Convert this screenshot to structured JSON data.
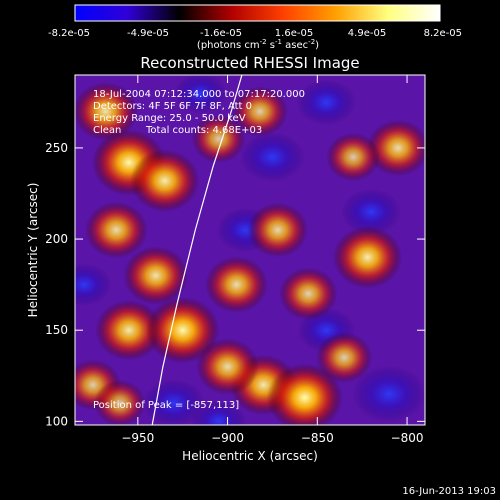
{
  "colorbar": {
    "tick_labels": [
      "-8.2e-05",
      "-4.9e-05",
      "-1.6e-05",
      "1.6e-05",
      "4.9e-05",
      "8.2e-05"
    ],
    "units_main": "(photons cm",
    "units_exp1": "-2",
    "units_mid": " s",
    "units_exp2": "-1",
    "units_mid2": " asec",
    "units_exp3": "-2",
    "units_close": ")",
    "colors": [
      "#0000ff",
      "#3000d8",
      "#000000",
      "#b00000",
      "#ff4000",
      "#ffa000",
      "#ffff80",
      "#ffffff"
    ]
  },
  "chart_data": {
    "type": "heatmap",
    "title": "Reconstructed RHESSI Image",
    "xlabel": "Heliocentric X (arcsec)",
    "ylabel": "Heliocentric Y (arcsec)",
    "xlim": [
      -985,
      -790
    ],
    "ylim": [
      98,
      290
    ],
    "x_ticks": [
      -950,
      -900,
      -850,
      -800
    ],
    "y_ticks": [
      100,
      150,
      200,
      250
    ],
    "value_range": [
      -8.2e-05,
      8.2e-05
    ],
    "peak": [
      -857,
      113
    ],
    "limb_curve": [
      [
        -942,
        98
      ],
      [
        -936,
        130
      ],
      [
        -928,
        165
      ],
      [
        -918,
        205
      ],
      [
        -908,
        240
      ],
      [
        -898,
        270
      ],
      [
        -892,
        290
      ]
    ],
    "bright_sources": [
      {
        "x": -968,
        "y": 270,
        "level": 0.75
      },
      {
        "x": -955,
        "y": 242,
        "level": 0.95
      },
      {
        "x": -935,
        "y": 232,
        "level": 0.85
      },
      {
        "x": -962,
        "y": 205,
        "level": 0.7
      },
      {
        "x": -940,
        "y": 180,
        "level": 0.75
      },
      {
        "x": -955,
        "y": 150,
        "level": 0.8
      },
      {
        "x": -925,
        "y": 150,
        "level": 0.95
      },
      {
        "x": -895,
        "y": 175,
        "level": 0.7
      },
      {
        "x": -872,
        "y": 205,
        "level": 0.65
      },
      {
        "x": -855,
        "y": 170,
        "level": 0.6
      },
      {
        "x": -822,
        "y": 190,
        "level": 0.85
      },
      {
        "x": -805,
        "y": 250,
        "level": 0.7
      },
      {
        "x": -830,
        "y": 245,
        "level": 0.5
      },
      {
        "x": -880,
        "y": 120,
        "level": 0.8
      },
      {
        "x": -857,
        "y": 113,
        "level": 1.0
      },
      {
        "x": -835,
        "y": 135,
        "level": 0.55
      },
      {
        "x": -900,
        "y": 130,
        "level": 0.7
      },
      {
        "x": -975,
        "y": 120,
        "level": 0.55
      },
      {
        "x": -960,
        "y": 110,
        "level": 0.45
      },
      {
        "x": -905,
        "y": 255,
        "level": 0.5
      },
      {
        "x": -882,
        "y": 270,
        "level": 0.55
      }
    ],
    "dark_regions": [
      {
        "x": -875,
        "y": 245,
        "level": 0.6
      },
      {
        "x": -845,
        "y": 275,
        "level": 0.5
      },
      {
        "x": -810,
        "y": 115,
        "level": 0.8
      },
      {
        "x": -820,
        "y": 215,
        "level": 0.5
      },
      {
        "x": -890,
        "y": 205,
        "level": 0.45
      },
      {
        "x": -930,
        "y": 110,
        "level": 0.55
      },
      {
        "x": -905,
        "y": 100,
        "level": 0.4
      },
      {
        "x": -845,
        "y": 150,
        "level": 0.45
      },
      {
        "x": -980,
        "y": 175,
        "level": 0.4
      },
      {
        "x": -915,
        "y": 280,
        "level": 0.35
      }
    ]
  },
  "annotations": {
    "line1": "18-Jul-2004 07:12:34.000 to 07:17:20.000",
    "line2": "Detectors: 4F 5F 6F 7F 8F, Att 0",
    "line3": "Energy Range: 25.0 - 50.0 keV",
    "line4_a": "Clean",
    "line4_b": "Total counts: 4.68E+03",
    "peak_label": "Position of Peak = [-857,113]"
  },
  "footer": {
    "timestamp": "16-Jun-2013 19:03"
  }
}
